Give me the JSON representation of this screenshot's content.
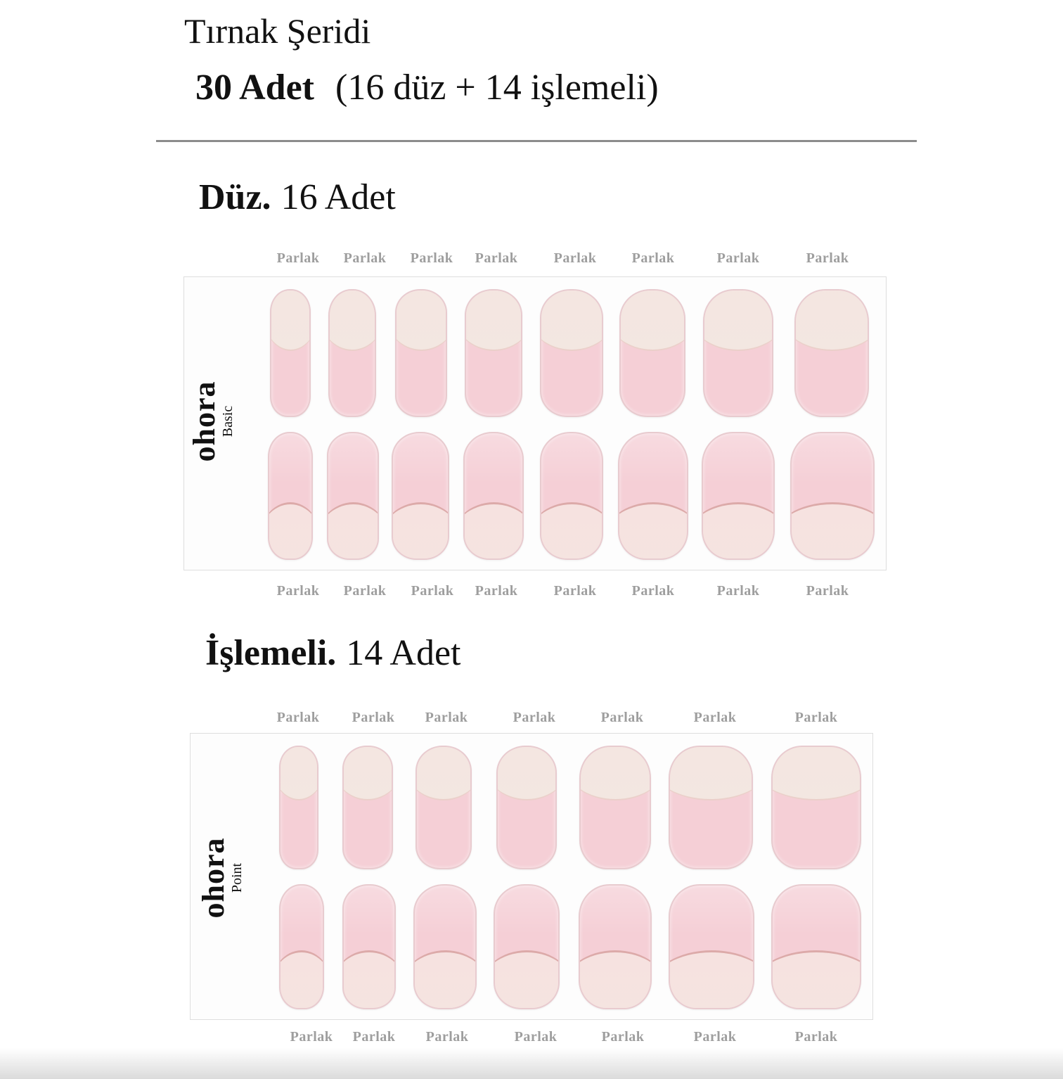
{
  "header": {
    "title": "Tırnak Şeridi",
    "count_bold": "30 Adet",
    "count_detail": "(16 düz + 14 işlemeli)"
  },
  "sections": [
    {
      "title_bold": "Düz.",
      "title_rest": "16 Adet",
      "brand": "ohora",
      "line": "Basic",
      "top_labels": [
        "Parlak",
        "Parlak",
        "Parlak",
        "Parlak",
        "Parlak",
        "Parlak",
        "Parlak",
        "Parlak"
      ],
      "bottom_labels": [
        "Parlak",
        "Parlak",
        "Parlak",
        "Parlak",
        "Parlak",
        "Parlak",
        "Parlak",
        "Parlak"
      ]
    },
    {
      "title_bold": "İşlemeli.",
      "title_rest": "14 Adet",
      "brand": "ohora",
      "line": "Point",
      "top_labels": [
        "Parlak",
        "Parlak",
        "Parlak",
        "Parlak",
        "Parlak",
        "Parlak",
        "Parlak"
      ],
      "bottom_labels": [
        "Parlak",
        "Parlak",
        "Parlak",
        "Parlak",
        "Parlak",
        "Parlak",
        "Parlak"
      ]
    }
  ],
  "colors": {
    "nail_pink": "#f5cfd6",
    "nail_tip": "#f3e4df",
    "label_gray": "#9e9e9e",
    "divider": "#8c8c8c"
  }
}
